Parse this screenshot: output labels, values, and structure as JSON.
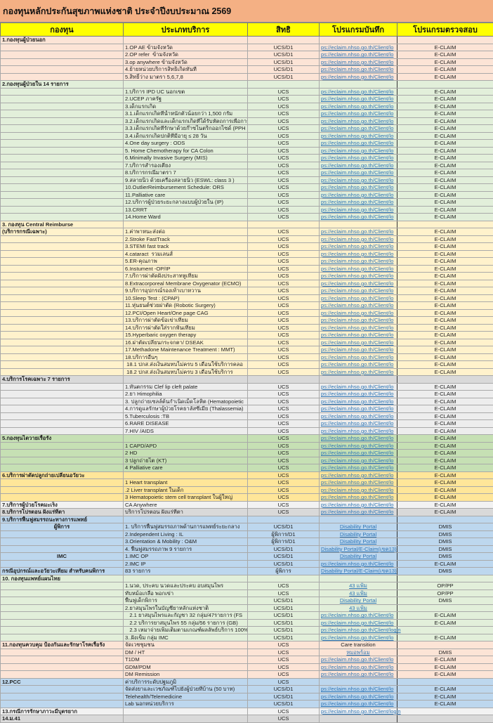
{
  "title": "กองทุนหลักประกันสุขภาพแห่งชาติ  ประจำปีงบประมาณ 2569",
  "headers": [
    "กองทุน",
    "ประเภทบริการ",
    "สิทธิ",
    "โปรแกรมบันทึก",
    "โปรแกรมตรวจสอบ"
  ],
  "colors": {
    "title": "#f4b084",
    "header": "#ffff00",
    "link": "#2e75b6"
  },
  "sections": [
    {
      "bg": "#fce4d6",
      "rows": [
        {
          "f": "1.กองทุนผู้ป่วยนอก"
        },
        {
          "s": "1.OP AE ข้ามจังหวัด",
          "r": "UCS/D1",
          "p": "ps://eclaim.nhso.go.th/Client/lo",
          "c": "E-CLAIM"
        },
        {
          "s": "2.OP refer  ข้ามจังหวัด",
          "r": "UCS/D1",
          "p": "ps://eclaim.nhso.go.th/Client/lo",
          "c": "E-CLAIM"
        },
        {
          "s": "3.op anywhere ข้ามจังหวัด",
          "r": "UCS/D1",
          "p": "ps://eclaim.nhso.go.th/Client/lo",
          "c": "E-CLAIM"
        },
        {
          "s": "4.ย้ายหน่วยบริการสิทธิเกิดทันที",
          "r": "UCS/D1",
          "p": "ps://eclaim.nhso.go.th/Client/lo",
          "c": "E-CLAIM"
        },
        {
          "s": "5.สิทธิ์ว่าง มาตรา 5,6,7,8",
          "r": "UCS/D1",
          "p": "ps://eclaim.nhso.go.th/Client/lo",
          "c": "E-CLAIM"
        }
      ]
    },
    {
      "bg": "#e2efda",
      "rows": [
        {
          "f": "2.กองทุนผู้ป่วยใน 14 รายการ"
        },
        {
          "s": "1.บริการ IPD UC นอกเขต",
          "r": "UCS",
          "p": "ps://eclaim.nhso.go.th/Client/lo",
          "c": "E-CLAIM"
        },
        {
          "s": "2.UCEP ภาครัฐ",
          "r": "UCS",
          "p": "ps://eclaim.nhso.go.th/Client/lo",
          "c": "E-CLAIM"
        },
        {
          "s": "3.เด็กแรกเกิด",
          "r": "UCS",
          "p": "ps://eclaim.nhso.go.th/Client/lo",
          "c": "E-CLAIM"
        },
        {
          "s": "3.1.เด็กแรกเกิดที่น้ำหนักตัวน้อยกว่า 1,500 กรัม",
          "r": "UCS",
          "p": "ps://eclaim.nhso.go.th/Client/lo",
          "c": "E-CLAIM"
        },
        {
          "s": "3.2.เด็กแรกเกิดและเด็กแรกเกิดที่ได้รับหัตถการเพื่อการ",
          "r": "UCS",
          "p": "ps://eclaim.nhso.go.th/Client/lo",
          "c": "E-CLAIM"
        },
        {
          "s": "3.3.เด็กแรกเกิดที่รักษาด้วยก๊าซไนตริกออกไซด์ (PPH",
          "r": "UCS",
          "p": "ps://eclaim.nhso.go.th/Client/lo",
          "c": "E-CLAIM"
        },
        {
          "s": "3.4.เด็กแรกเกิดปกติที่มีอายุ ≤ 28 วัน",
          "r": "UCS",
          "p": "ps://eclaim.nhso.go.th/Client/lo",
          "c": "E-CLAIM"
        },
        {
          "s": "4.One day surgery : ODS",
          "r": "UCS",
          "p": "ps://eclaim.nhso.go.th/Client/lo",
          "c": "E-CLAIM"
        },
        {
          "s": "5. Home Chemotherapy for CA Colon",
          "r": "UCS",
          "p": "ps://eclaim.nhso.go.th/Client/lo",
          "c": "E-CLAIM"
        },
        {
          "s": "6.Minimally Invasive Surgery (MIS)",
          "r": "UCS",
          "p": "ps://eclaim.nhso.go.th/Client/lo",
          "c": "E-CLAIM"
        },
        {
          "s": "7.บริการสำรองเตียง",
          "r": "UCS",
          "p": "ps://eclaim.nhso.go.th/Client/lo",
          "c": "E-CLAIM"
        },
        {
          "s": "8.บริการกรณีมาตรา 7",
          "r": "UCS",
          "p": "ps://eclaim.nhso.go.th/Client/lo",
          "c": "E-CLAIM"
        },
        {
          "s": "9.สลายนิ่ว ด้วยเครื่องสลายนิ่ว (ESWL: class 3 )",
          "r": "UCS",
          "p": "ps://eclaim.nhso.go.th/Client/lo",
          "c": "E-CLAIM"
        },
        {
          "s": "10.OutlierReimbursement Schedule: ORS",
          "r": "UCS",
          "p": "ps://eclaim.nhso.go.th/Client/lo",
          "c": "E-CLAIM"
        },
        {
          "s": "11.Palliative care",
          "r": "UCS",
          "p": "ps://eclaim.nhso.go.th/Client/lo",
          "c": "E-CLAIM"
        },
        {
          "s": "12.บริการผู้ป่วยระยะกลางแบบผู้ป่วยใน (IP)",
          "r": "UCS",
          "p": "ps://eclaim.nhso.go.th/Client/lo",
          "c": "E-CLAIM"
        },
        {
          "s": "13.CRRT",
          "r": "UCS",
          "p": "ps://eclaim.nhso.go.th/Client/lo",
          "c": "E-CLAIM"
        },
        {
          "s": "14.Home Ward",
          "r": "UCS",
          "p": "ps://eclaim.nhso.go.th/Client/lo",
          "c": "E-CLAIM"
        }
      ]
    },
    {
      "bg": "#fff2cc",
      "rows": [
        {
          "f": "3. กองทุน Central Reimburse"
        },
        {
          "f": "(บริการกรณีเฉพาะ)",
          "s": "1.ค่าพาหนะส่งต่อ",
          "r": "UCS",
          "p": "ps://eclaim.nhso.go.th/Client/lo",
          "c": "E-CLAIM"
        },
        {
          "s": "2.Stroke FastTrack",
          "r": "UCS",
          "p": "ps://eclaim.nhso.go.th/Client/lo",
          "c": "E-CLAIM"
        },
        {
          "s": "3.STEMI fast track",
          "r": "UCS",
          "p": "ps://eclaim.nhso.go.th/Client/lo",
          "c": "E-CLAIM"
        },
        {
          "s": "4.cataract  รวมเลนส์",
          "r": "UCS",
          "p": "ps://eclaim.nhso.go.th/Client/lo",
          "c": "E-CLAIM"
        },
        {
          "s": "5.ER-คุณภาพ",
          "r": "UCS",
          "p": "ps://eclaim.nhso.go.th/Client/lo",
          "c": "E-CLAIM"
        },
        {
          "s": "6.Instument -OP/IP",
          "r": "UCS",
          "p": "ps://eclaim.nhso.go.th/Client/lo",
          "c": "E-CLAIM"
        },
        {
          "s": "7.บริการผ่าตัดฝังประสาทหูเทียม",
          "r": "UCS",
          "p": "ps://eclaim.nhso.go.th/Client/lo",
          "c": "E-CLAIM"
        },
        {
          "s": "8.Extracorporeal Membrane Oxygenator (ECMO)",
          "r": "UCS",
          "p": "ps://eclaim.nhso.go.th/Client/lo",
          "c": "E-CLAIM"
        },
        {
          "s": "9.บริการอุปกรณ์รองเท้าเบาหวาน",
          "r": "UCS",
          "p": "ps://eclaim.nhso.go.th/Client/lo",
          "c": "E-CLAIM"
        },
        {
          "s": "10.Sleep Test : (CPAP)",
          "r": "UCS",
          "p": "ps://eclaim.nhso.go.th/Client/lo",
          "c": "E-CLAIM"
        },
        {
          "s": "11.หุ่นยนต์ช่วยผ่าตัด (Robotic Surgery)",
          "r": "UCS",
          "p": "ps://eclaim.nhso.go.th/Client/lo",
          "c": "E-CLAIM"
        },
        {
          "s": "12.PCI/Open Heart/One page CAG",
          "r": "UCS",
          "p": "ps://eclaim.nhso.go.th/Client/lo",
          "c": "E-CLAIM"
        },
        {
          "s": "13.บริการผ่าตัดข้อเข่าเทียม",
          "r": "UCS",
          "p": "ps://eclaim.nhso.go.th/Client/lo",
          "c": "E-CLAIM"
        },
        {
          "s": "14.บริการผ่าตัดใส่รากฟันเทียม",
          "r": "UCS",
          "p": "ps://eclaim.nhso.go.th/Client/lo",
          "c": "E-CLAIM"
        },
        {
          "s": "15.Hyperbaric oxygen therapy",
          "r": "UCS",
          "p": "ps://eclaim.nhso.go.th/Client/lo",
          "c": "E-CLAIM"
        },
        {
          "s": "16.ผ่าตัดเปลี่ยนกระจกตา/ DSEAK",
          "r": "UCS",
          "p": "ps://eclaim.nhso.go.th/Client/lo",
          "c": "E-CLAIM"
        },
        {
          "s": "17.Methadone Maintenance Treatment : MMT)",
          "r": "UCS",
          "p": "ps://eclaim.nhso.go.th/Client/lo",
          "c": "E-CLAIM"
        },
        {
          "s": "18.บริการอื่นๆ",
          "r": "UCS",
          "p": "ps://eclaim.nhso.go.th/Client/lo",
          "c": "E-CLAIM"
        },
        {
          "s": " 18.1 ปกส.ส่งเงินสมทบไม่ครบ 5 เดือนใช้บริการคลอ",
          "r": "UCS",
          "p": "ps://eclaim.nhso.go.th/Client/lo",
          "c": "E-CLAIM"
        },
        {
          "s": " 18.2 ปกส.ส่งเงินสมทบไม่ครบ 3 เดือนใช้บริการ",
          "r": "UCS",
          "p": "ps://eclaim.nhso.go.th/Client/lo",
          "c": "E-CLAIM"
        }
      ]
    },
    {
      "bg": "#ededed",
      "headbg": "#d9d9d9",
      "rows": [
        {
          "f": "4.บริการโรคเฉพาะ 7 รายการ"
        },
        {
          "s": "1.ทันตกรรม Clef lip cleft palate",
          "r": "UCS",
          "p": "ps://eclaim.nhso.go.th/Client/lo",
          "c": "E-CLAIM"
        },
        {
          "s": "2.ยา Himophilia",
          "r": "UCS",
          "p": "ps://eclaim.nhso.go.th/Client/lo",
          "c": "E-CLAIM"
        },
        {
          "s": "3. ปลูกถ่ายเซลล์ต้นกำเนิดเม็ดโลหิต (Hematopoietic",
          "r": "UCS",
          "p": "ps://eclaim.nhso.go.th/Client/lo",
          "c": "E-CLAIM"
        },
        {
          "s": "4.การดูแลรักษาผู้ป่วยโรคธาลัสซีเมีย (Thalassemia)",
          "r": "UCS",
          "p": "ps://eclaim.nhso.go.th/Client/lo",
          "c": "E-CLAIM"
        },
        {
          "s": "5.Tuberculosis :TB",
          "r": "UCS",
          "p": "ps://eclaim.nhso.go.th/Client/lo",
          "c": "E-CLAIM"
        },
        {
          "s": "6.RARE DISEASE",
          "r": "UCS",
          "p": "ps://eclaim.nhso.go.th/Client/lo",
          "c": "E-CLAIM"
        },
        {
          "s": "7.HIV /AIDS",
          "r": "UCS",
          "p": "ps://eclaim.nhso.go.th/Client/lo",
          "c": "E-CLAIM"
        }
      ]
    },
    {
      "bg": "#c6e0b4",
      "rows": [
        {
          "f": "5.กองทุนไตวายเรื้อรัง",
          "r": "UCS",
          "p": "ps://eclaim.nhso.go.th/Client/lo",
          "c": "E-CLAIM"
        },
        {
          "s": "1 CAPD/APD",
          "r": "UCS",
          "p": "ps://eclaim.nhso.go.th/Client/lo",
          "c": "E-CLAIM"
        },
        {
          "s": "2 HD",
          "r": "UCS",
          "p": "ps://eclaim.nhso.go.th/Client/lo",
          "c": "E-CLAIM"
        },
        {
          "s": "3 ปลูกถ่ายไต (KT)",
          "r": "UCS",
          "p": "ps://eclaim.nhso.go.th/Client/lo",
          "c": "E-CLAIM"
        },
        {
          "s": "4 Palliative care",
          "r": "UCS",
          "p": "ps://eclaim.nhso.go.th/Client/lo",
          "c": "E-CLAIM"
        }
      ]
    },
    {
      "bg": "#ffe699",
      "rows": [
        {
          "f": "6.บริการผ่าตัดปลูกถ่ายเปลี่ยนอวัยวะ",
          "r": "UCS",
          "p": "ps://eclaim.nhso.go.th/Client/lo",
          "c": "E-CLAIM"
        },
        {
          "s": "1 Heart transplant",
          "r": "UCS",
          "p": "ps://eclaim.nhso.go.th/Client/lo",
          "c": "E-CLAIM"
        },
        {
          "s": ".2 Liver transplant ในเด็ก",
          "r": "UCS",
          "p": "ps://eclaim.nhso.go.th/Client/lo",
          "c": "E-CLAIM"
        },
        {
          "s": "3 Hematopoietic stem cell transplant ในผู้ใหญ่",
          "r": "UCS",
          "p": "ps://eclaim.nhso.go.th/Client/lo",
          "c": "E-CLAIM"
        }
      ]
    },
    {
      "bg": "#f2f2f2",
      "rows": [
        {
          "f": "7.บริการผู้ป่วยโรคมะเร็ง",
          "s": "CA Anywhere",
          "r": "UCS",
          "p": "ps://eclaim.nhso.go.th/Client/lo",
          "c": "E-CLAIM"
        }
      ]
    },
    {
      "bg": "#d9d9d9",
      "rows": [
        {
          "f": "8.บริการโปรตอน ฝังแร่ที่ตา",
          "s": "บริการโปรตอน ฝังแร่ที่ตา",
          "r": "UCS",
          "p": "ps://eclaim.nhso.go.th/Client/lo",
          "c": "E-CLAIM"
        }
      ]
    },
    {
      "bg": "#bdd7ee",
      "rows": [
        {
          "f": "9.บริการฟื้นฟูสมรรถนะทางการแพทย์"
        },
        {
          "f": "ผู้พิการ",
          "center": true,
          "s": "1. บริการฟื้นฟูสมรรถภาพด้านการแพทย์ระยะกลาง",
          "r": "UCS/D1",
          "p": "Disability Portal",
          "c": "DMIS"
        },
        {
          "s": "2.Independent Living : IL",
          "r": "ผู้พิการ/D1",
          "p": "Disability Portal",
          "c": "DMIS"
        },
        {
          "s": "3.Orientation & Mobility : O&M",
          "r": "ผู้พิการ/D1",
          "p": "Disability Portal",
          "c": "DMIS"
        },
        {
          "s": "4. ฟื้นฟูสมรรถภาพ 9 รายการ",
          "r": "UCS/D1",
          "p": "Disability Portal/E-Claim(เขต13)",
          "c": "DMIS"
        },
        {
          "f": "IMC",
          "center": true,
          "s": "1.IMC OP",
          "r": "UCS/D1",
          "p": "Disability Portal",
          "c": "DMIS"
        },
        {
          "s": "2.IMC IP",
          "r": "UCS/D1",
          "p": "ps://eclaim.nhso.go.th/Client/lo",
          "c": "E-CLAIM"
        },
        {
          "f": "กรณีอุปกรณ์และอวัยวะเทียม สำหรับคนพิการ",
          "s": "83 รายการ",
          "r": "ผู้พิการ",
          "p": "Disability Portal/E-Claim(เขต13)",
          "c": "DMIS"
        }
      ]
    },
    {
      "bg": "#e2efda",
      "rows": [
        {
          "f": "10. กองทุนแพทย์แผนไทย"
        },
        {
          "s": "1.นวด, ประคบ นวดและประคบ อบสมุนไพร",
          "r": "UCS",
          "p": "43 แฟ้ม",
          "c": "OP/PP"
        },
        {
          "s": "ทับหม้อเกลือ พอกเข่า",
          "r": "UCS",
          "p": "43 แฟ้ม",
          "c": "OP/PP"
        },
        {
          "s": "ฟื้นฟูเด็กพิการ",
          "r": "UCS/D1",
          "p": "Disability Portal",
          "c": "DMIS"
        },
        {
          "s": "2.ยาสมุนไพรในบัญชียาหลักแห่งชาติ",
          "r": "UCS/D1",
          "p": "43 แฟ้ม"
        },
        {
          "s": "   2.1 ยาสมุนไพรและกัญชา 32 กลุ่ม/47รายการ (FS",
          "r": "UCS/D1",
          "p": "ps://eclaim.nhso.go.th/Client/lo",
          "c": "E-CLAIM"
        },
        {
          "s": "   2.2 บริการยาสมุนไพร 55 กลุ่ม/56 รายการ (GB)",
          "r": "UCS/D1",
          "p": "ps://eclaim.nhso.go.th/Client/lo",
          "c": "E-CLAIM"
        },
        {
          "s": "   2.3 เหมาจ่ายเพิ่มเติมตามเกณฑ์ผลลัพธ์บริการ 100%",
          "r": "UCS/D1",
          "p": "ps://eclaim.nhso.go.th/Client/login"
        },
        {
          "s": "3..ฝังเข็ม กลุ่ม IMC",
          "r": "UCS/D1",
          "p": "ps://eclaim.nhso.go.th/Client/lo",
          "c": "E-CLAIM"
        }
      ]
    },
    {
      "bg": "#fce4d6",
      "rows": [
        {
          "f": "11.กองทุนควบคุม ป้องกันและรักษาโรคเรื้อรัง",
          "s": "จัดเวชชุมชน",
          "r": "UCS",
          "p": "Care transition"
        },
        {
          "s": "DM / HT",
          "r": "UCS",
          "p": "หมอพร้อม",
          "c": "DMIS"
        },
        {
          "s": "T1DM",
          "r": "UCS",
          "p": "ps://eclaim.nhso.go.th/Client/lo",
          "c": "E-CLAIM"
        },
        {
          "s": "GDM/PDM",
          "r": "UCS",
          "p": "ps://eclaim.nhso.go.th/Client/lo",
          "c": "E-CLAIM"
        },
        {
          "s": "DM Remission",
          "r": "UCS",
          "p": "ps://eclaim.nhso.go.th/Client/lo",
          "c": "E-CLAIM"
        }
      ]
    },
    {
      "bg": "#bdd7ee",
      "rows": [
        {
          "f": "12.PCC",
          "s": "ค่าบริการระดับปฐมภูมิ",
          "r": "UCS"
        },
        {
          "s": "จัดส่งยาและเวชภัณฑ์ไปยังผู้ป่วยที่บ้าน (50 บาท)",
          "r": "UCS/D1",
          "p": "ps://eclaim.nhso.go.th/Client/lo",
          "c": "E-CLAIM"
        },
        {
          "s": "Telehealth/Telemedicine",
          "r": "UCS/D1",
          "p": "ps://eclaim.nhso.go.th/Client/lo",
          "c": "E-CLAIM"
        },
        {
          "s": "Lab นอกหน่วยบริการ",
          "r": "UCS/D1",
          "p": "ps://eclaim.nhso.go.th/Client/lo",
          "c": "E-CLAIM"
        }
      ]
    },
    {
      "bg": "#f2f2f2",
      "rows": [
        {
          "f": "13.กรณีการรักษาภาวะมีบุตรยาก",
          "r": "UCS",
          "p": "ps://eclaim.nhso.go.th/Client/login"
        }
      ]
    },
    {
      "bg": "#d9d9d9",
      "rows": [
        {
          "f": "14.ม.41",
          "r": "UCS"
        }
      ]
    }
  ]
}
